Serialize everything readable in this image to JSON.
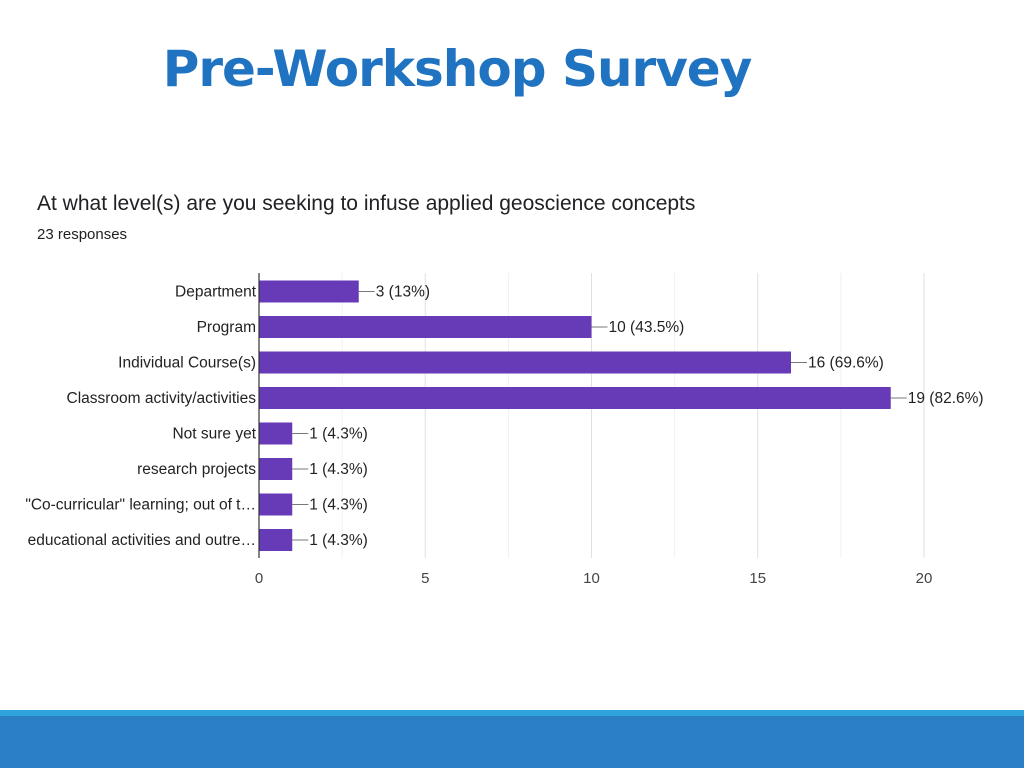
{
  "slide": {
    "title": "Pre-Workshop Survey",
    "title_color": "#1f73c1",
    "footer_colors": [
      "#2fa3dc",
      "#2a7fc5"
    ]
  },
  "chart_data": {
    "type": "bar",
    "orientation": "horizontal",
    "title": "At what level(s) are you seeking to infuse applied geoscience concepts",
    "subtitle": "23 responses",
    "categories": [
      "Department",
      "Program",
      "Individual Course(s)",
      "Classroom activity/activities",
      "Not sure yet",
      "research projects",
      "\"Co-curricular\" learning; out of t…",
      "educational activities and outre…"
    ],
    "values": [
      3,
      10,
      16,
      19,
      1,
      1,
      1,
      1
    ],
    "data_labels": [
      "3 (13%)",
      "10 (43.5%)",
      "16 (69.6%)",
      "19 (82.6%)",
      "1 (4.3%)",
      "1 (4.3%)",
      "1 (4.3%)",
      "1 (4.3%)"
    ],
    "xlim": [
      0,
      20
    ],
    "xticks": [
      0,
      5,
      10,
      15,
      20
    ],
    "xlabel": "",
    "ylabel": "",
    "grid": true,
    "bar_color": "#673ab7"
  }
}
